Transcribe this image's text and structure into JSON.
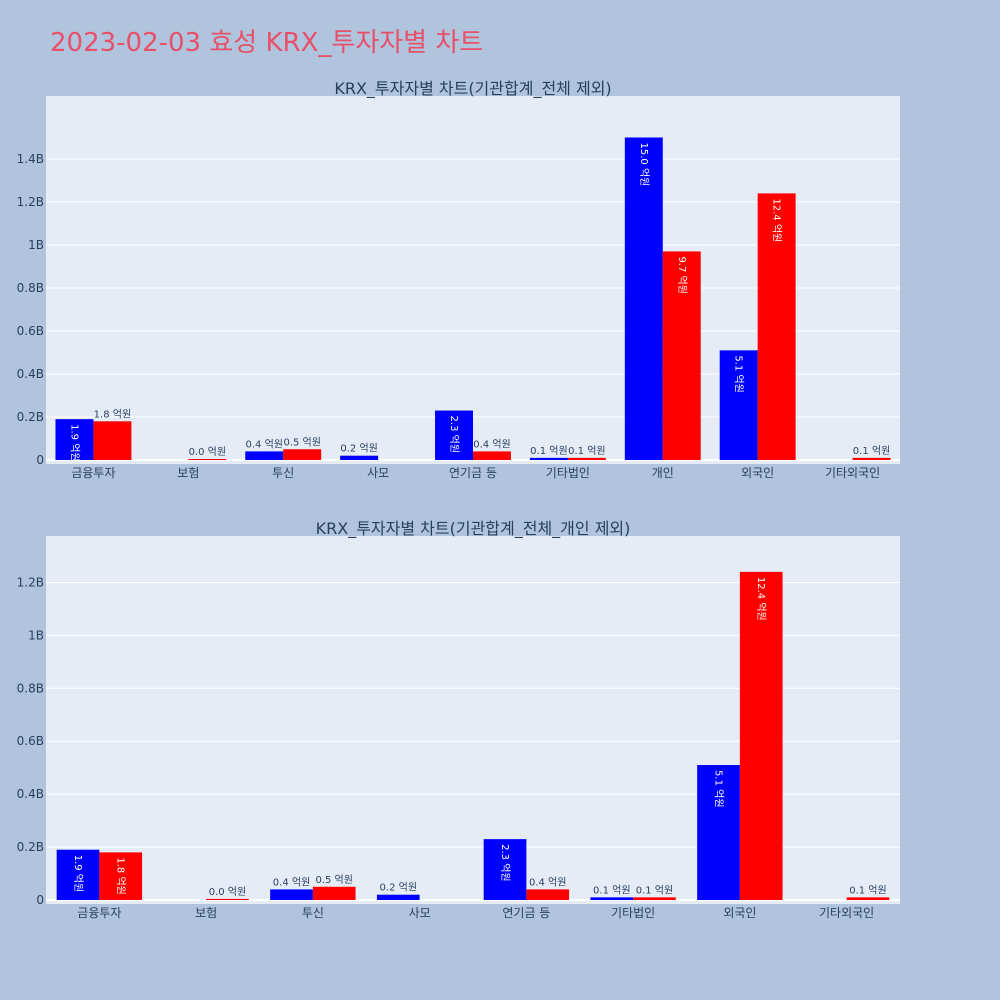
{
  "page_title": "2023-02-03 효성 KRX_투자자별 차트",
  "colors": {
    "series_a": "#0000ff",
    "series_b": "#ff0000",
    "plot_bg": "#e5ecf6",
    "paper_bg": "#b0c4de",
    "title": "#e8506a"
  },
  "chart_data": [
    {
      "type": "bar",
      "title": "KRX_투자자별 차트(기관합계_전체 제외)",
      "categories": [
        "금융투자",
        "보험",
        "투신",
        "사모",
        "연기금 등",
        "기타법인",
        "개인",
        "외국인",
        "기타외국인"
      ],
      "ylim": [
        0,
        1.6
      ],
      "yticks": [
        0,
        0.2,
        0.4,
        0.6,
        0.8,
        1,
        1.2,
        1.4
      ],
      "ytick_labels": [
        "0",
        "0.2B",
        "0.4B",
        "0.6B",
        "0.8B",
        "1B",
        "1.2B",
        "1.4B"
      ],
      "series": [
        {
          "color": "#0000ff",
          "values": [
            0.19,
            null,
            0.04,
            0.02,
            0.23,
            0.01,
            1.5,
            0.51,
            null
          ],
          "labels": [
            "1.9 억원",
            "",
            "0.4 억원",
            "0.2 억원",
            "2.3 억원",
            "0.1 억원",
            "15.0 억원",
            "5.1 억원",
            ""
          ]
        },
        {
          "color": "#ff0000",
          "values": [
            0.18,
            0.004,
            0.05,
            null,
            0.04,
            0.01,
            0.97,
            1.24,
            0.01
          ],
          "labels": [
            "1.8 억원",
            "0.0 억원",
            "0.5 억원",
            "",
            "0.4 억원",
            "0.1 억원",
            "9.7 억원",
            "12.4 억원",
            "0.1 억원"
          ]
        }
      ],
      "grid": true,
      "legend": "none"
    },
    {
      "type": "bar",
      "title": "KRX_투자자별 차트(기관합계_전체_개인 제외)",
      "categories": [
        "금융투자",
        "보험",
        "투신",
        "사모",
        "연기금 등",
        "기타법인",
        "외국인",
        "기타외국인"
      ],
      "ylim": [
        0,
        1.3
      ],
      "yticks": [
        0,
        0.2,
        0.4,
        0.6,
        0.8,
        1,
        1.2
      ],
      "ytick_labels": [
        "0",
        "0.2B",
        "0.4B",
        "0.6B",
        "0.8B",
        "1B",
        "1.2B"
      ],
      "series": [
        {
          "color": "#0000ff",
          "values": [
            0.19,
            null,
            0.04,
            0.02,
            0.23,
            0.01,
            0.51,
            null
          ],
          "labels": [
            "1.9 억원",
            "",
            "0.4 억원",
            "0.2 억원",
            "2.3 억원",
            "0.1 억원",
            "5.1 억원",
            ""
          ]
        },
        {
          "color": "#ff0000",
          "values": [
            0.18,
            0.004,
            0.05,
            null,
            0.04,
            0.01,
            1.24,
            0.01
          ],
          "labels": [
            "1.8 억원",
            "0.0 억원",
            "0.5 억원",
            "",
            "0.4 억원",
            "0.1 억원",
            "12.4 억원",
            "0.1 억원"
          ]
        }
      ],
      "grid": true,
      "legend": "none"
    }
  ]
}
